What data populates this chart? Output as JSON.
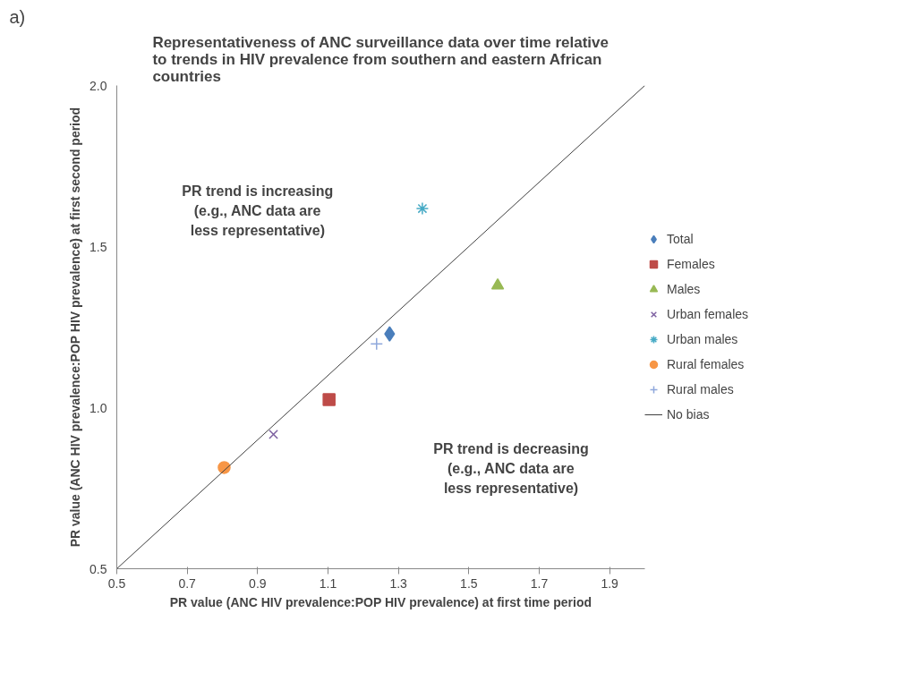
{
  "chart_data": {
    "type": "scatter",
    "title": "Representativeness of ANC surveillance data over time relative to trends in HIV prevalence from southern and eastern African countries",
    "xlabel": "PR value (ANC HIV prevalence:POP HIV prevalence) at first time period",
    "ylabel": "PR value (ANC HIV prevalence:POP HIV prevalence) at first second period",
    "xlim": [
      0.5,
      2.0
    ],
    "ylim": [
      0.5,
      2.0
    ],
    "xticks": [
      0.5,
      0.7,
      0.9,
      1.1,
      1.3,
      1.5,
      1.7,
      1.9
    ],
    "yticks": [
      {
        "value": 0.5,
        "label": "0.5"
      },
      {
        "value": 1.0,
        "label": "1.0"
      },
      {
        "value": 1.5,
        "label": "1.5"
      },
      {
        "value": 2.0,
        "label": "2.0"
      }
    ],
    "grid": false,
    "legend": "right",
    "annotations": [
      "a)",
      "PR trend is increasing\n(e.g., ANC data are\nless representative)",
      "PR trend is decreasing\n(e.g., ANC data are\nless representative)"
    ],
    "series": [
      {
        "name": "Total",
        "color": "#4a7ebb",
        "marker": "diamond",
        "x": [
          1.275
        ],
        "values": [
          1.229
        ]
      },
      {
        "name": "Females",
        "color": "#be4b48",
        "marker": "square",
        "x": [
          1.103
        ],
        "values": [
          1.025
        ]
      },
      {
        "name": "Males",
        "color": "#98b954",
        "marker": "triangle",
        "x": [
          1.582
        ],
        "values": [
          1.379
        ]
      },
      {
        "name": "Urban females",
        "color": "#7d60a0",
        "marker": "cross",
        "x": [
          0.945
        ],
        "values": [
          0.917
        ]
      },
      {
        "name": "Urban males",
        "color": "#46aac5",
        "x": [
          1.368
        ],
        "values": [
          1.618
        ]
      },
      {
        "name": "Rural females",
        "color": "#f79646",
        "marker": "circle",
        "x": [
          0.805
        ],
        "values": [
          0.814
        ]
      },
      {
        "name": "Rural males",
        "color": "#8fa8dc",
        "marker": "plus",
        "x": [
          1.238
        ],
        "values": [
          1.198
        ]
      },
      {
        "name": "No bias",
        "color": "#404040",
        "type": "line",
        "x": [
          0.5,
          2.0
        ],
        "values": [
          0.5,
          2.0
        ]
      }
    ]
  }
}
